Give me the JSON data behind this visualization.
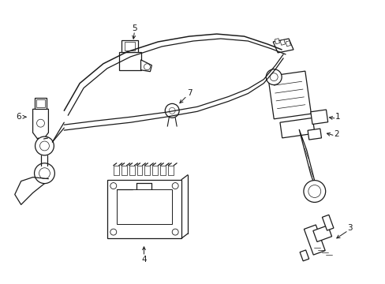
{
  "bg_color": "#ffffff",
  "line_color": "#1a1a1a",
  "lw": 0.9,
  "figsize": [
    4.89,
    3.6
  ],
  "dpi": 100,
  "label_fontsize": 7.5
}
